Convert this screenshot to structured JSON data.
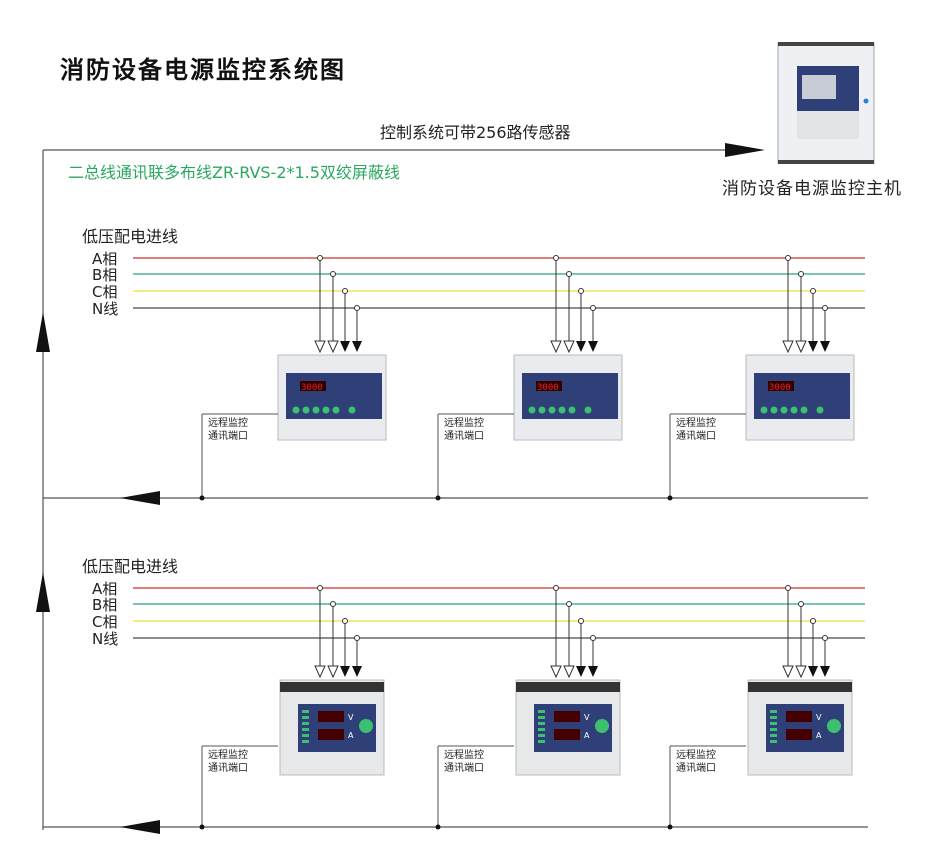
{
  "title": "消防设备电源监控系统图",
  "host": {
    "label": "消防设备电源监控主机"
  },
  "top_bus": {
    "label": "控制系统可带256路传感器"
  },
  "cable_note": "二总线通讯联多布线ZR-RVS-2*1.5双绞屏蔽线",
  "comm_port_label": [
    "远程监控",
    "通讯端口"
  ],
  "groups": [
    {
      "label": "低压配电进线",
      "phases": [
        {
          "label": "A相",
          "color": "#d9534f"
        },
        {
          "label": "B相",
          "color": "#4cb88a"
        },
        {
          "label": "C相",
          "color": "#f2e35a"
        },
        {
          "label": "N线",
          "color": "#666666"
        }
      ],
      "device_type": "din-rail-monitor",
      "device_display": "3000",
      "device_count": 3
    },
    {
      "label": "低压配电进线",
      "phases": [
        {
          "label": "A相",
          "color": "#d9534f"
        },
        {
          "label": "B相",
          "color": "#4cb88a"
        },
        {
          "label": "C相",
          "color": "#f2e35a"
        },
        {
          "label": "N线",
          "color": "#666666"
        }
      ],
      "device_type": "voltage-current-monitor",
      "device_units": [
        "V",
        "A"
      ],
      "device_count": 3
    }
  ],
  "colors": {
    "cable_note": "#2aa860",
    "device_panel": "#2f3f78",
    "led": "#e02020",
    "button": "#3cc070"
  }
}
